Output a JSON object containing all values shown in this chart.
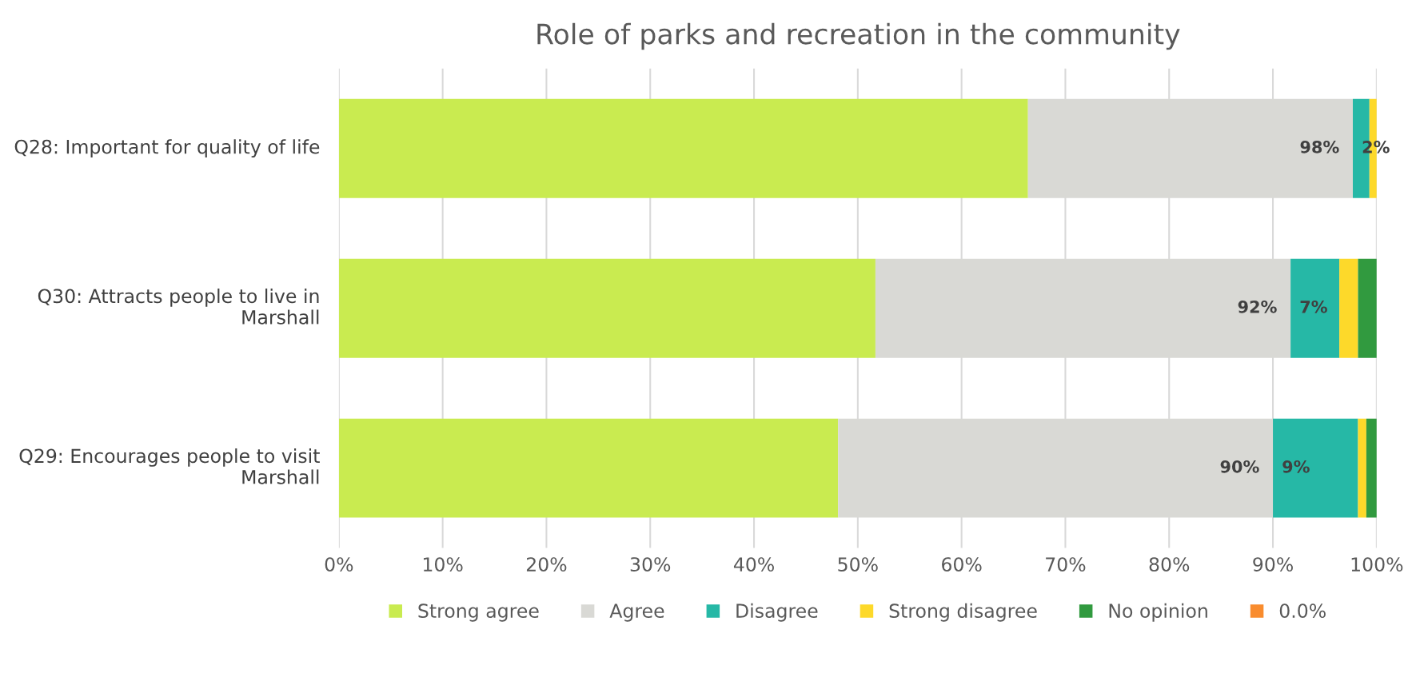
{
  "chart_data": {
    "type": "bar",
    "orientation": "horizontal",
    "stacked": true,
    "title": "Role of parks and recreation in the community",
    "categories": [
      "Q28: Important for quality of life",
      "Q30: Attracts people to live in Marshall",
      "Q29: Encourages people to visit Marshall"
    ],
    "series": [
      {
        "name": "Strong agree",
        "color": "#c9eb50",
        "values": [
          66.4,
          51.7,
          48.1
        ]
      },
      {
        "name": "Agree",
        "color": "#d9d9d5",
        "values": [
          31.3,
          40.0,
          41.9
        ]
      },
      {
        "name": "Disagree",
        "color": "#26b8a6",
        "values": [
          1.6,
          4.7,
          8.2
        ]
      },
      {
        "name": "Strong disagree",
        "color": "#fdd92a",
        "values": [
          0.7,
          1.8,
          0.8
        ]
      },
      {
        "name": "No opinion",
        "color": "#319a3f",
        "values": [
          0,
          1.8,
          1.0
        ]
      },
      {
        "name": "0.0%",
        "color": "#f98c2e",
        "values": [
          0,
          0,
          0
        ]
      }
    ],
    "xlim": [
      0,
      100
    ],
    "xticks": [
      {
        "value": 0,
        "label": "0%"
      },
      {
        "value": 10,
        "label": "10%"
      },
      {
        "value": 20,
        "label": "20%"
      },
      {
        "value": 30,
        "label": "30%"
      },
      {
        "value": 40,
        "label": "40%"
      },
      {
        "value": 50,
        "label": "50%"
      },
      {
        "value": 60,
        "label": "60%"
      },
      {
        "value": 70,
        "label": "70%"
      },
      {
        "value": 80,
        "label": "80%"
      },
      {
        "value": 90,
        "label": "90%"
      },
      {
        "value": 100,
        "label": "100%"
      }
    ],
    "annotations": [
      {
        "text": "98%",
        "x": 97.7,
        "y": "Q28: Important for quality of life"
      },
      {
        "text": "2%",
        "x": 97.7,
        "y": "Q28: Important for quality of life"
      },
      {
        "text": "92%",
        "x": 91.7,
        "y": "Q30: Attracts people to live in Marshall"
      },
      {
        "text": "7%",
        "x": 91.7,
        "y": "Q30: Attracts people to live in Marshall"
      },
      {
        "text": "90%",
        "x": 90.0,
        "y": "Q29: Encourages people to visit Marshall"
      },
      {
        "text": "9%",
        "x": 90.0,
        "y": "Q29: Encourages people to visit Marshall"
      }
    ],
    "grid": "x",
    "legend": "bottom"
  }
}
